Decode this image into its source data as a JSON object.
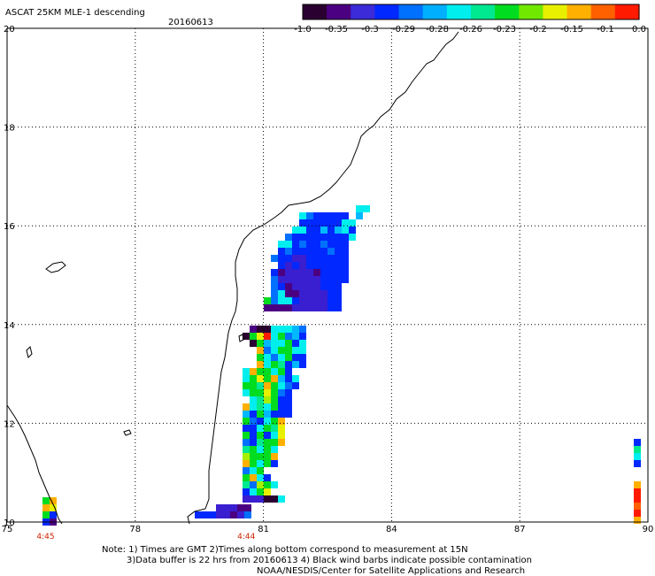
{
  "header": {
    "title": "ASCAT 25KM MLE-1 descending",
    "date": "20160613"
  },
  "colorbar": {
    "colors": [
      "#2a0030",
      "#4b0082",
      "#3b2bd8",
      "#0028ff",
      "#0070ff",
      "#00b0ff",
      "#00eeee",
      "#00e890",
      "#00dc20",
      "#70e800",
      "#e8f000",
      "#ffb000",
      "#ff6000",
      "#ff1a00"
    ],
    "labels": [
      "-1.0",
      "-0.35",
      "-0.3",
      "-0.29",
      "-0.28",
      "-0.26",
      "-0.23",
      "-0.2",
      "-0.15",
      "-0.1",
      "0.0"
    ]
  },
  "map": {
    "lon_ticks": [
      "75",
      "78",
      "81",
      "84",
      "87",
      "90"
    ],
    "lat_ticks": [
      "20",
      "18",
      "16",
      "14",
      "12",
      "10"
    ],
    "time_labels": [
      {
        "text": "4:45",
        "lon": 75.9
      },
      {
        "text": "4:44",
        "lon": 80.6
      }
    ]
  },
  "notes": {
    "line1": "Note: 1) Times are GMT 2)Times along bottom correspond to measurement at 15N",
    "line2": "3)Data buffer is 22 hrs from 20160613 4) Black wind barbs indicate possible contamination",
    "line3": "NOAA/NESDIS/Center for Satellite Applications and Research"
  }
}
